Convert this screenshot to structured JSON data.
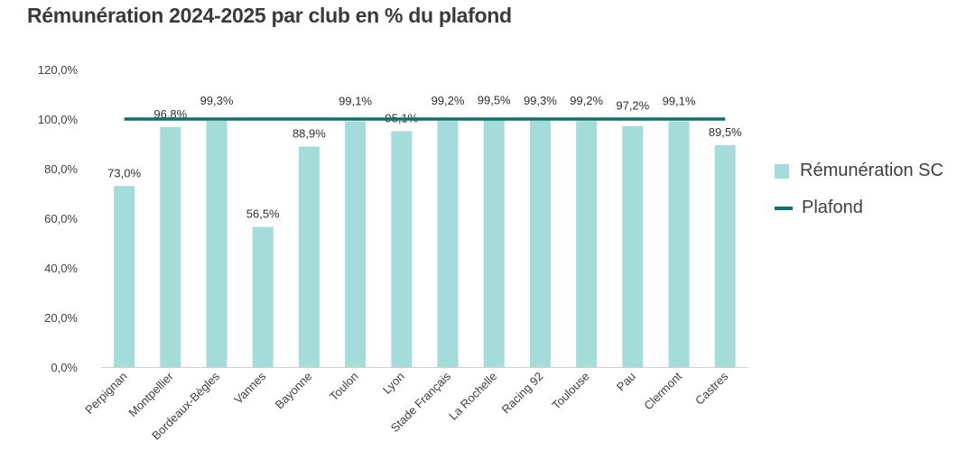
{
  "chart_data": {
    "type": "bar",
    "title": "Rémunération 2024-2025 par club en % du plafond",
    "categories": [
      "Perpignan",
      "Montpellier",
      "Bordeaux-Bègles",
      "Vannes",
      "Bayonne",
      "Toulon",
      "Lyon",
      "Stade Français",
      "La Rochelle",
      "Racing 92",
      "Toulouse",
      "Pau",
      "Clermont",
      "Castres"
    ],
    "series": [
      {
        "name": "Rémunération SC",
        "type": "bar",
        "color": "#a3dcd8",
        "values": [
          73.0,
          96.8,
          99.3,
          56.5,
          88.9,
          99.1,
          95.1,
          99.2,
          99.5,
          99.3,
          99.2,
          97.2,
          99.1,
          89.5
        ],
        "labels": [
          "73,0%",
          "96,8%",
          "99,3%",
          "56,5%",
          "88,9%",
          "99,1%",
          "95,1%",
          "99,2%",
          "99,5%",
          "99,3%",
          "99,2%",
          "97,2%",
          "99,1%",
          "89,5%"
        ]
      },
      {
        "name": "Plafond",
        "type": "line",
        "color": "#0f706c",
        "value": 100
      }
    ],
    "yticks": [
      "0,0%",
      "20,0%",
      "40,0%",
      "60,0%",
      "80,0%",
      "100,0%",
      "120,0%"
    ],
    "ylim": [
      0,
      120
    ],
    "grid": false,
    "legend": "right"
  }
}
